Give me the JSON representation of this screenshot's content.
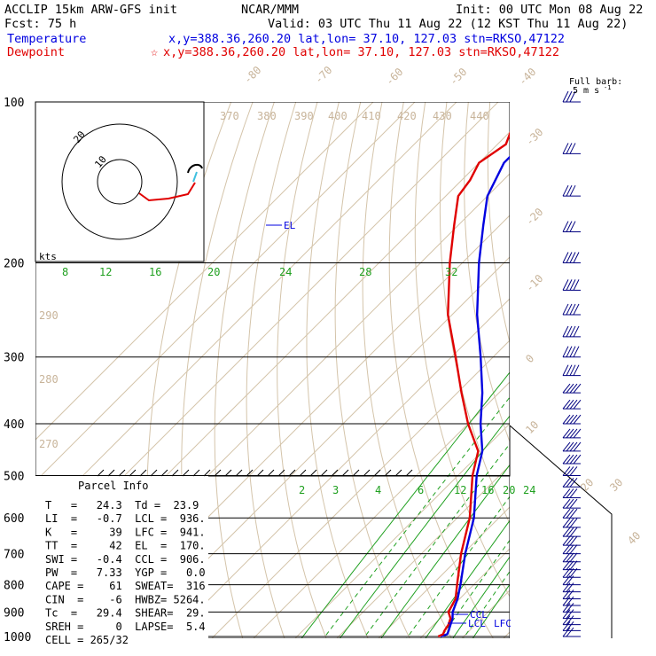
{
  "header": {
    "line1_left": "ACCLIP 15km ARW-GFS init",
    "line1_center": "NCAR/MMM",
    "line1_right": "Init: 00 UTC Mon 08 Aug 22",
    "line2_left": "Fcst:   75 h",
    "line2_right": "Valid: 03 UTC Thu 11 Aug 22 (12 KST Thu 11 Aug 22)",
    "temp_label": "Temperature",
    "temp_info": "x,y=388.36,260.20   lat,lon= 37.10, 127.03  stn=RKSO,47122",
    "dew_label": "Dewpoint",
    "dew_marker": "☆",
    "dew_info": "x,y=388.36,260.20   lat,lon= 37.10, 127.03  stn=RKSO,47122"
  },
  "wind_legend": {
    "line1": "Full barb:",
    "line2": "5 m s",
    "sup": "-1"
  },
  "hodograph": {
    "units": "kts",
    "ring_labels": [
      "10",
      "20"
    ]
  },
  "parcel_info": {
    "title": "Parcel Info",
    "rows": [
      "T   =   24.3  Td =  23.9",
      "LI  =   -0.7  LCL =  936.",
      "K   =     39  LFC =  941.",
      "TT  =     42  EL  =  170.",
      "SWI =   -0.4  CCL =  906.",
      "PW  =   7.33  YGP =   0.0",
      "CAPE =    61  SWEAT=  316",
      "CIN  =    -6  HWBZ= 5264.",
      "Tc  =   29.4  SHEAR=  29.",
      "SREH =     0  LAPSE=  5.4",
      "CELL = 265/32"
    ]
  },
  "annotations": {
    "el": "EL",
    "ccl": "CCL",
    "lcl": "LCL",
    "lfc": "LFC"
  },
  "colors": {
    "temperature": "#0000e0",
    "dewpoint": "#e00000",
    "mixing_ratio": "#20a020",
    "dry_adiabat": "#c8b49a",
    "isobar": "#000000"
  },
  "chart_data": {
    "type": "skew-t",
    "y_axis": {
      "label_values": [
        "100",
        "200",
        "300",
        "400",
        "500",
        "600",
        "700",
        "800",
        "900",
        "1000"
      ],
      "scale": "log-pressure"
    },
    "isotherm_labels": [
      "-80",
      "-70",
      "-60",
      "-50",
      "-40",
      "-30",
      "-20",
      "-10",
      "0",
      "10",
      "20",
      "30",
      "40"
    ],
    "theta_labels": [
      "370",
      "380",
      "390",
      "400",
      "410",
      "420",
      "430",
      "440",
      "290",
      "280",
      "270"
    ],
    "upper_mixing_labels": [
      "8",
      "12",
      "16",
      "20",
      "24",
      "28",
      "32"
    ],
    "lower_mixing_labels": [
      "2",
      "3",
      "4",
      "6",
      "8",
      "12",
      "16",
      "20",
      "24"
    ],
    "series": [
      {
        "name": "Temperature",
        "color": "#0000e0",
        "pressure": [
          1000,
          990,
          975,
          950,
          925,
          900,
          850,
          800,
          700,
          600,
          500,
          450,
          400,
          350,
          300,
          250,
          200,
          170,
          150,
          130,
          110,
          100
        ],
        "temperature": [
          24.5,
          25.5,
          25.0,
          24.0,
          23.0,
          21.5,
          19.5,
          16.8,
          10.5,
          4.0,
          -5.5,
          -10.0,
          -17.0,
          -24.0,
          -33.0,
          -44.0,
          -56.0,
          -64.0,
          -70.0,
          -74.0,
          -74.0,
          -70.0
        ]
      },
      {
        "name": "Dewpoint",
        "color": "#e00000",
        "pressure": [
          1000,
          990,
          975,
          950,
          925,
          900,
          850,
          800,
          700,
          600,
          500,
          450,
          400,
          350,
          300,
          250,
          200,
          170,
          150,
          140,
          130,
          120,
          110,
          100
        ],
        "temperature": [
          23.9,
          24.5,
          24.0,
          23.5,
          22.5,
          20.5,
          19.0,
          16.0,
          9.5,
          3.0,
          -6.5,
          -11.0,
          -20.0,
          -29.0,
          -39.0,
          -51.0,
          -63.0,
          -71.0,
          -77.0,
          -78.0,
          -80.0,
          -78.0,
          -81.0,
          -79.0
        ]
      }
    ]
  }
}
